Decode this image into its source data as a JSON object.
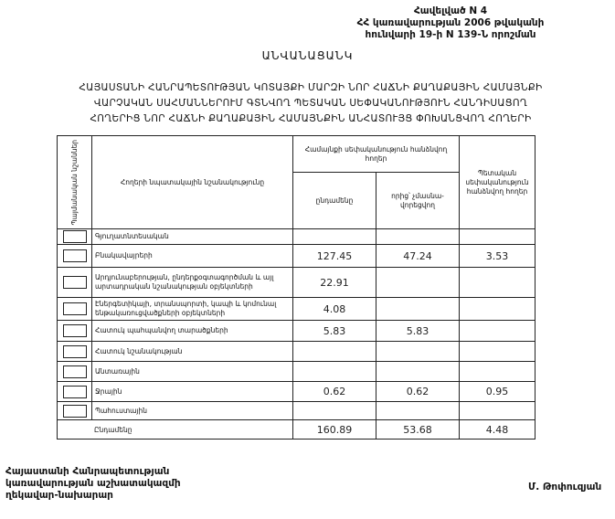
{
  "header": {
    "lines": [
      "Հավելված N 4",
      "ՀՀ կառավարության 2006 թվականի",
      "հունվարի 19-ի N 139-Ն որոշման"
    ]
  },
  "title": "ԱՆՎԱՆԱՑԱՆԿ",
  "subtitle": [
    "ՀԱՅԱՍՏԱՆԻ ՀԱՆՐԱՊԵՏՈՒԹՅԱՆ ԿՈՏԱՅՔԻ ՄԱՐԶԻ ՆՈՐ ՀԱՃՆԻ ՔԱՂԱՔԱՅԻՆ ՀԱՄԱՅՆՔԻ",
    "ՎԱՐՉԱԿԱՆ ՍԱՀՄԱՆՆԵՐՈՒՄ ԳՏՆՎՈՂ ՊԵՏԱԿԱՆ ՍԵՓԱԿԱՆՈՒԹՅՈՒՆ ՀԱՆԴԻՍԱՑՈՂ",
    "ՀՈՂԵՐԻՑ ՆՈՐ ՀԱՃՆԻ ՔԱՂԱՔԱՅԻՆ ՀԱՄԱՅՆՔԻՆ ԱՆՀԱՏՈՒՅՑ ՓՈԽԱՆՑՎՈՂ ՀՈՂԵՐԻ"
  ],
  "table": {
    "headers": {
      "symbols": "Պայմանական նշաններ",
      "purpose": "Հողերի նպատակային նշանակությունը",
      "community": "Համայնքի սեփականություն հանձնվող հողեր",
      "total": "ընդամենը",
      "of_which": "որից՝ չմասնա-վորեցվող",
      "state": "Պետական սեփականություն հանձնվող հողեր"
    },
    "rows": [
      {
        "name": "Գյուղատնտեսական",
        "total": "",
        "of_which": "",
        "state": ""
      },
      {
        "name": "Բնակավայրերի",
        "total": "127.45",
        "of_which": "47.24",
        "state": "3.53"
      },
      {
        "name": "Արդյունաբերության, ընդերքօգտագործման և այլ արտադրական նշանակության օբյեկտների",
        "total": "22.91",
        "of_which": "",
        "state": ""
      },
      {
        "name": "Էներգետիկայի, տրանսպորտի, կապի և կոմունալ ենթակառուցվածքների օբյեկտների",
        "total": "4.08",
        "of_which": "",
        "state": ""
      },
      {
        "name": "Հատուկ պահպանվող տարածքների",
        "total": "5.83",
        "of_which": "5.83",
        "state": ""
      },
      {
        "name": "Հատուկ նշանակության",
        "total": "",
        "of_which": "",
        "state": ""
      },
      {
        "name": "Անտառային",
        "total": "",
        "of_which": "",
        "state": ""
      },
      {
        "name": "Ջրային",
        "total": "0.62",
        "of_which": "0.62",
        "state": "0.95"
      },
      {
        "name": "Պահուստային",
        "total": "",
        "of_which": "",
        "state": ""
      }
    ],
    "totals": {
      "label": "Ընդամենը",
      "total": "160.89",
      "of_which": "53.68",
      "state": "4.48"
    }
  },
  "footer": {
    "lines": [
      "Հայաստանի Հանրապետության",
      "կառավարության աշխատակազմի",
      "ղեկավար-նախարար"
    ],
    "signature": "Մ. Թոփուզյան"
  }
}
